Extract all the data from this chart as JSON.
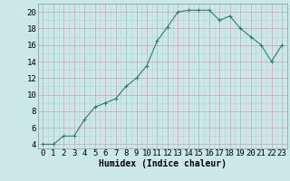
{
  "x": [
    0,
    1,
    2,
    3,
    4,
    5,
    6,
    7,
    8,
    9,
    10,
    11,
    12,
    13,
    14,
    15,
    16,
    17,
    18,
    19,
    20,
    21,
    22,
    23
  ],
  "y": [
    4,
    4,
    5,
    5,
    7,
    8.5,
    9,
    9.5,
    11,
    12,
    13.5,
    16.5,
    18.2,
    20,
    20.2,
    20.2,
    20.2,
    19,
    19.5,
    18,
    17,
    16,
    14,
    16
  ],
  "line_color": "#2e7d6e",
  "marker": "+",
  "bg_color": "#cce8e6",
  "grid_major_color": "#b8d4d2",
  "grid_minor_color": "#d8eceb",
  "xlabel": "Humidex (Indice chaleur)",
  "yticks": [
    4,
    6,
    8,
    10,
    12,
    14,
    16,
    18,
    20
  ],
  "ylim": [
    3.5,
    21
  ],
  "xlim": [
    -0.5,
    23.5
  ],
  "xlabel_fontsize": 7,
  "tick_fontsize": 6.5
}
